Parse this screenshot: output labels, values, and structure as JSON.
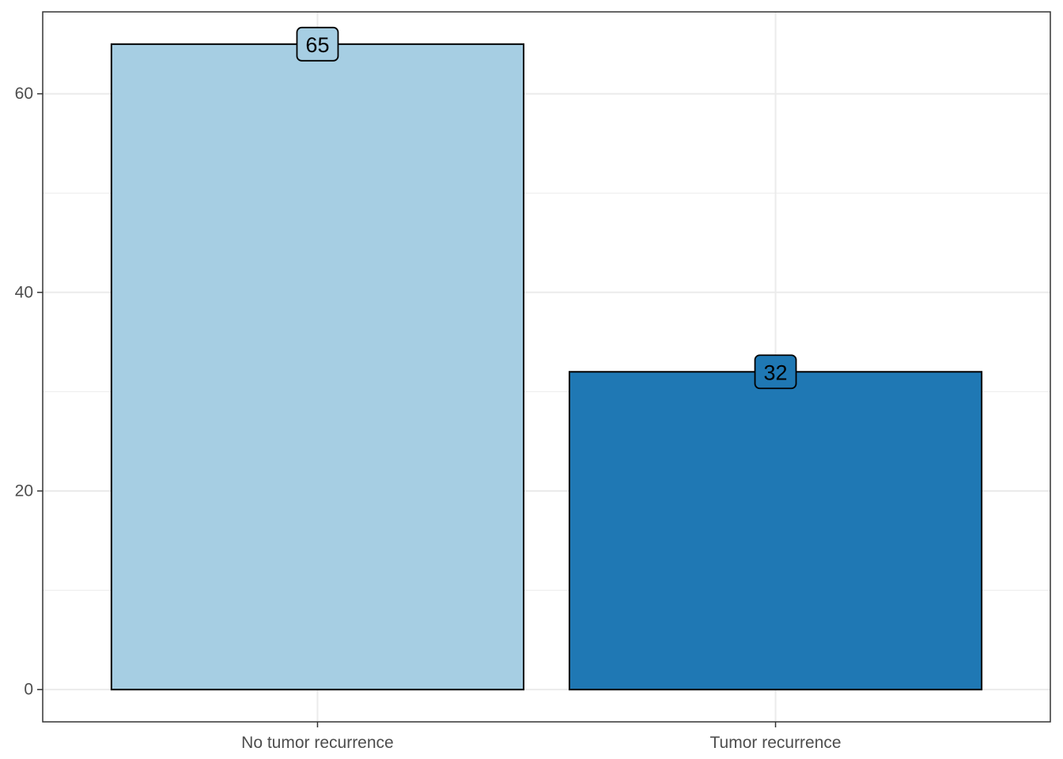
{
  "chart_data": {
    "type": "bar",
    "title": "",
    "xlabel": "",
    "ylabel": "",
    "categories": [
      "No tumor recurrence",
      "Tumor recurrence"
    ],
    "values": [
      65,
      32
    ],
    "data_labels": [
      "65",
      "32"
    ],
    "colors": [
      "#a6cee3",
      "#1f78b4"
    ],
    "ylim": [
      -3.25,
      68.25
    ],
    "y_ticks": [
      0,
      20,
      40,
      60
    ],
    "y_tick_labels": [
      "0",
      "20",
      "40",
      "60"
    ],
    "y_minor_ticks": [
      10,
      30,
      50
    ],
    "grid": true,
    "legend": "none"
  }
}
